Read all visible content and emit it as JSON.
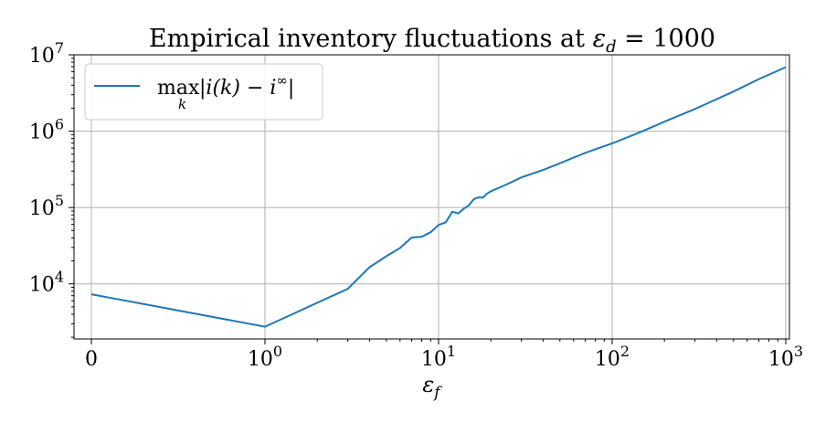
{
  "chart_data": {
    "type": "line",
    "title": "Empirical inventory fluctuations at εd = 1000",
    "xlabel": "εf",
    "ylabel": "",
    "x_scale": "symlog",
    "y_scale": "log",
    "xlim": [
      -0.1,
      1050
    ],
    "ylim": [
      1900,
      10000000
    ],
    "grid": true,
    "legend_position": "top-left",
    "x_ticks": [
      {
        "value": 0,
        "label": "0"
      },
      {
        "value": 1,
        "base": "10",
        "exp": "0"
      },
      {
        "value": 10,
        "base": "10",
        "exp": "1"
      },
      {
        "value": 100,
        "base": "10",
        "exp": "2"
      },
      {
        "value": 1000,
        "base": "10",
        "exp": "3"
      }
    ],
    "y_ticks": [
      {
        "value": 10000,
        "base": "10",
        "exp": "4"
      },
      {
        "value": 100000,
        "base": "10",
        "exp": "5"
      },
      {
        "value": 1000000,
        "base": "10",
        "exp": "6"
      },
      {
        "value": 10000000,
        "base": "10",
        "exp": "7"
      }
    ],
    "series": [
      {
        "name": "max_k |i(k) − i∞|",
        "color": "#1f77b4",
        "x": [
          0,
          1,
          3,
          4,
          5,
          6,
          7,
          8,
          9,
          10,
          11,
          12,
          13,
          14,
          15,
          16,
          17,
          18,
          19,
          20,
          25,
          30,
          40,
          50,
          70,
          100,
          150,
          200,
          300,
          500,
          700,
          1000
        ],
        "y": [
          7300,
          2750,
          8600,
          16500,
          23000,
          29500,
          40500,
          41500,
          47500,
          59000,
          64000,
          88000,
          84000,
          97000,
          108000,
          129000,
          136000,
          135000,
          152000,
          163000,
          203000,
          248000,
          310000,
          380000,
          520000,
          690000,
          1000000,
          1330000,
          1950000,
          3300000,
          4800000,
          6900000
        ]
      }
    ],
    "legend_label": {
      "op": "max",
      "sub": "k",
      "expr_pre": "|i(k) − i",
      "sup": "∞",
      "expr_post": "|"
    },
    "title_parts": {
      "pre": "Empirical inventory fluctuations at ",
      "eps": "ε",
      "sub": "d",
      "post": " = 1000"
    },
    "xlabel_parts": {
      "eps": "ε",
      "sub": "f"
    }
  }
}
